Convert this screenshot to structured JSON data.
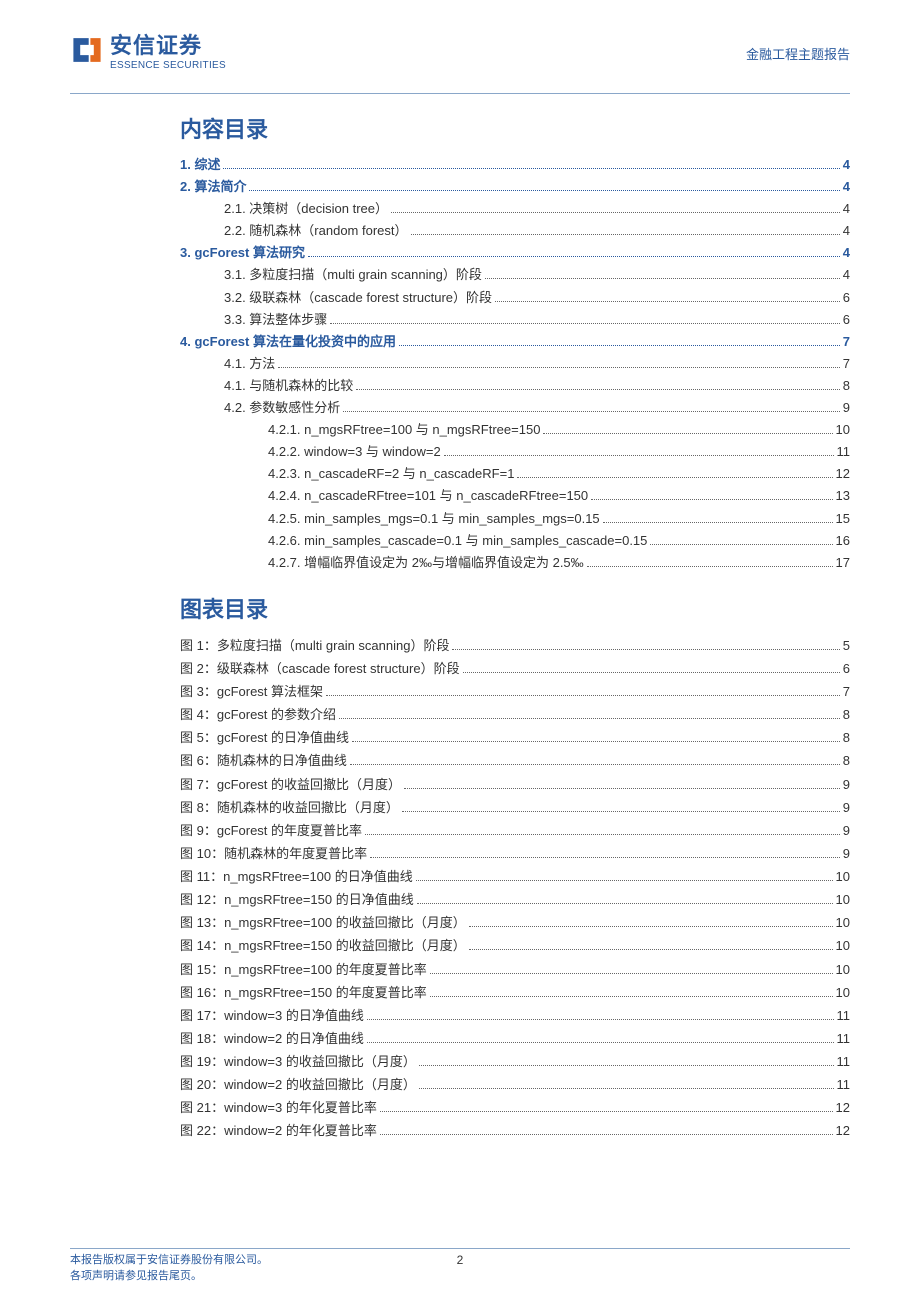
{
  "header": {
    "logo_cn": "安信证券",
    "logo_en": "ESSENCE SECURITIES",
    "right": "金融工程主题报告"
  },
  "toc_title": "内容目录",
  "fig_title": "图表目录",
  "toc": [
    {
      "level": 0,
      "label": "1. 综述",
      "page": "4"
    },
    {
      "level": 0,
      "label": "2. 算法简介",
      "page": "4"
    },
    {
      "level": 1,
      "label": "2.1. 决策树（decision tree）",
      "page": "4"
    },
    {
      "level": 1,
      "label": "2.2. 随机森林（random forest）",
      "page": "4"
    },
    {
      "level": 0,
      "label": "3. gcForest 算法研究",
      "page": "4"
    },
    {
      "level": 1,
      "label": "3.1. 多粒度扫描（multi grain scanning）阶段",
      "page": "4"
    },
    {
      "level": 1,
      "label": "3.2. 级联森林（cascade forest structure）阶段",
      "page": "6"
    },
    {
      "level": 1,
      "label": "3.3. 算法整体步骤",
      "page": "6"
    },
    {
      "level": 0,
      "label": "4. gcForest 算法在量化投资中的应用",
      "page": "7"
    },
    {
      "level": 1,
      "label": "4.1. 方法",
      "page": "7"
    },
    {
      "level": 1,
      "label": "4.1. 与随机森林的比较",
      "page": "8"
    },
    {
      "level": 1,
      "label": "4.2. 参数敏感性分析",
      "page": "9"
    },
    {
      "level": 2,
      "label": "4.2.1. n_mgsRFtree=100 与 n_mgsRFtree=150",
      "page": "10"
    },
    {
      "level": 2,
      "label": "4.2.2. window=3 与 window=2",
      "page": "11"
    },
    {
      "level": 2,
      "label": "4.2.3. n_cascadeRF=2 与 n_cascadeRF=1",
      "page": "12"
    },
    {
      "level": 2,
      "label": "4.2.4. n_cascadeRFtree=101 与 n_cascadeRFtree=150",
      "page": "13"
    },
    {
      "level": 2,
      "label": "4.2.5. min_samples_mgs=0.1 与 min_samples_mgs=0.15",
      "page": "15"
    },
    {
      "level": 2,
      "label": "4.2.6. min_samples_cascade=0.1 与 min_samples_cascade=0.15",
      "page": "16"
    },
    {
      "level": 2,
      "label": "4.2.7. 增幅临界值设定为 2‰与增幅临界值设定为 2.5‰",
      "page": "17"
    }
  ],
  "figs": [
    {
      "label": "图 1：多粒度扫描（multi grain scanning）阶段",
      "page": "5"
    },
    {
      "label": "图 2：级联森林（cascade forest structure）阶段",
      "page": "6"
    },
    {
      "label": "图 3：gcForest 算法框架",
      "page": "7"
    },
    {
      "label": "图 4：gcForest 的参数介绍",
      "page": "8"
    },
    {
      "label": "图 5：gcForest 的日净值曲线",
      "page": "8"
    },
    {
      "label": "图 6：随机森林的日净值曲线",
      "page": "8"
    },
    {
      "label": "图 7：gcForest 的收益回撤比（月度）",
      "page": "9"
    },
    {
      "label": "图 8：随机森林的收益回撤比（月度）",
      "page": "9"
    },
    {
      "label": "图 9：gcForest 的年度夏普比率",
      "page": "9"
    },
    {
      "label": "图 10：随机森林的年度夏普比率",
      "page": "9"
    },
    {
      "label": "图 11：n_mgsRFtree=100 的日净值曲线",
      "page": "10"
    },
    {
      "label": "图 12：n_mgsRFtree=150 的日净值曲线",
      "page": "10"
    },
    {
      "label": "图 13：n_mgsRFtree=100 的收益回撤比（月度）",
      "page": "10"
    },
    {
      "label": "图 14：n_mgsRFtree=150 的收益回撤比（月度）",
      "page": "10"
    },
    {
      "label": "图 15：n_mgsRFtree=100 的年度夏普比率",
      "page": "10"
    },
    {
      "label": "图 16：n_mgsRFtree=150 的年度夏普比率",
      "page": "10"
    },
    {
      "label": "图 17：window=3 的日净值曲线",
      "page": "11"
    },
    {
      "label": "图 18：window=2 的日净值曲线",
      "page": "11"
    },
    {
      "label": "图 19：window=3 的收益回撤比（月度）",
      "page": "11"
    },
    {
      "label": "图 20：window=2 的收益回撤比（月度）",
      "page": "11"
    },
    {
      "label": "图 21：window=3 的年化夏普比率",
      "page": "12"
    },
    {
      "label": "图 22：window=2 的年化夏普比率",
      "page": "12"
    }
  ],
  "footer": {
    "line1": "本报告版权属于安信证券股份有限公司。",
    "line2": "各项声明请参见报告尾页。",
    "page": "2"
  },
  "colors": {
    "brand": "#2a5a9e",
    "text": "#333333",
    "rule": "#8aa7c9"
  }
}
